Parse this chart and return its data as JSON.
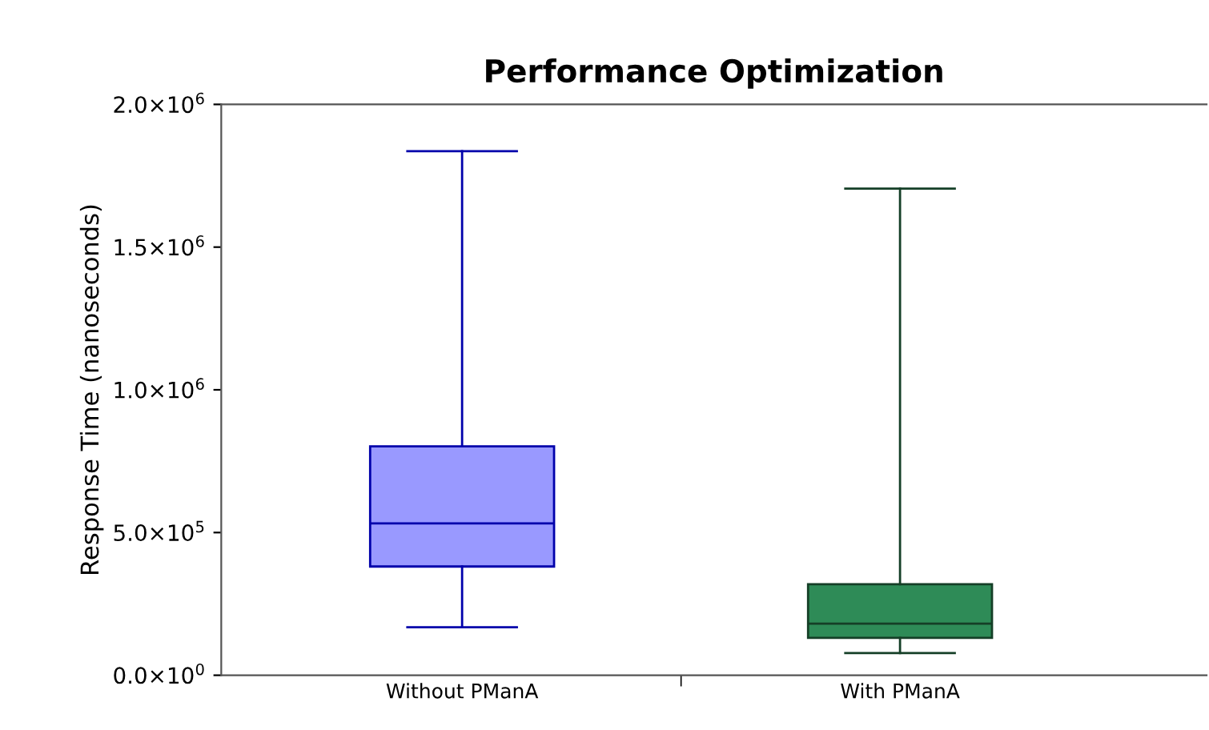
{
  "chart_data": {
    "type": "box",
    "title": "Performance Optimization",
    "ylabel": "Response Time (nanoseconds)",
    "categories": [
      "Without PManA",
      "With PManA"
    ],
    "boxes": [
      {
        "low": 168000,
        "q1": 381000,
        "median": 532000,
        "q3": 802000,
        "high": 1836000
      },
      {
        "low": 78000,
        "q1": 131000,
        "median": 181000,
        "q3": 319000,
        "high": 1705000
      }
    ],
    "colors": [
      "#9999ff",
      "#2e8b57"
    ],
    "ylim": [
      0,
      2000000
    ],
    "yticks": [
      {
        "value": 0,
        "label": "0.0×10$^{0}$"
      },
      {
        "value": 500000,
        "label": "5.0×10$^{5}$"
      },
      {
        "value": 1000000,
        "label": "1.0×10$^{6}$"
      },
      {
        "value": 1500000,
        "label": "1.5×10$^{6}$"
      },
      {
        "value": 2000000,
        "label": "2.0×10$^{6}$"
      }
    ],
    "grid": false
  }
}
